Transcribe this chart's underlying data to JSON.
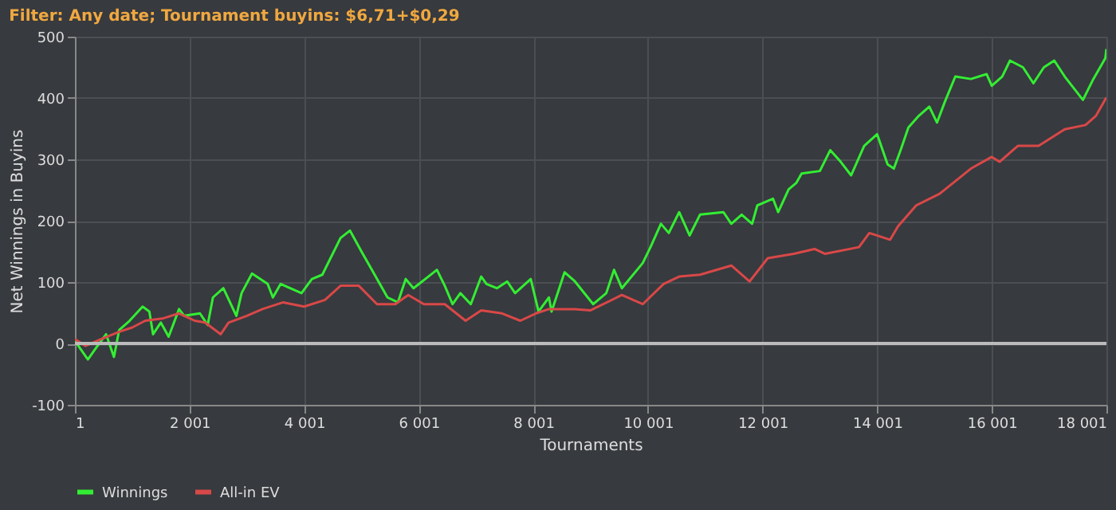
{
  "chart_data": {
    "type": "line",
    "title": "Filter: Any date; Tournament buyins: $6,71+$0,29",
    "xlabel": "Tournaments",
    "ylabel": "Net Winnings in Buyins",
    "xlim": [
      1,
      18001
    ],
    "xticks": [
      1,
      {
        "value": 2001,
        "label": "2 001"
      },
      {
        "value": 4001,
        "label": "4 001"
      },
      {
        "value": 6001,
        "label": "6 001"
      },
      {
        "value": 8001,
        "label": "8 001"
      },
      {
        "value": 10001,
        "label": "10 001"
      },
      {
        "value": 12001,
        "label": "12 001"
      },
      {
        "value": 14001,
        "label": "14 001"
      },
      {
        "value": 16001,
        "label": "16 001"
      },
      {
        "value": 18001,
        "label": "18 001"
      }
    ],
    "ylim": [
      -100,
      500
    ],
    "yticks": [
      -100,
      0,
      100,
      200,
      300,
      400,
      500
    ],
    "grid": true,
    "legend": "bottom",
    "marker": "none",
    "line_style": "solid",
    "ref_lines": [
      {
        "axis": "y",
        "value": 0,
        "color": "#bbbbbb"
      }
    ],
    "series": [
      {
        "name": "Winnings",
        "color": "#33ee33",
        "x": [
          1,
          227,
          364,
          545,
          682,
          773,
          955,
          1182,
          1300,
          1364,
          1500,
          1636,
          1818,
          1909,
          2182,
          2318,
          2409,
          2591,
          2818,
          2909,
          3091,
          3364,
          3455,
          3591,
          3955,
          4136,
          4318,
          4636,
          4800,
          5000,
          5182,
          5455,
          5636,
          5773,
          5909,
          6318,
          6455,
          6591,
          6727,
          6909,
          7091,
          7182,
          7364,
          7545,
          7682,
          7955,
          8091,
          8273,
          8318,
          8545,
          8727,
          9045,
          9273,
          9409,
          9545,
          9909,
          10045,
          10227,
          10364,
          10545,
          10727,
          10909,
          11318,
          11455,
          11636,
          11818,
          11909,
          12182,
          12273,
          12455,
          12591,
          12682,
          13000,
          13182,
          13364,
          13545,
          13773,
          14000,
          14182,
          14291,
          14409,
          14545,
          14727,
          14909,
          15045,
          15182,
          15364,
          15636,
          15909,
          16000,
          16182,
          16318,
          16545,
          16727,
          16909,
          17091,
          17273,
          17591,
          17773,
          17982,
          18001
        ],
        "values": [
          4,
          -26,
          -8,
          15,
          -22,
          22,
          37,
          60,
          52,
          15,
          34,
          11,
          56,
          45,
          49,
          30,
          75,
          90,
          45,
          82,
          114,
          97,
          75,
          97,
          82,
          105,
          112,
          172,
          184,
          150,
          120,
          75,
          67,
          105,
          90,
          120,
          94,
          64,
          82,
          64,
          109,
          97,
          90,
          101,
          82,
          105,
          52,
          75,
          52,
          116,
          101,
          64,
          82,
          120,
          90,
          131,
          157,
          195,
          180,
          214,
          176,
          210,
          214,
          195,
          210,
          195,
          225,
          236,
          214,
          251,
          262,
          277,
          281,
          315,
          296,
          274,
          322,
          341,
          292,
          285,
          315,
          352,
          371,
          386,
          360,
          394,
          435,
          431,
          439,
          420,
          435,
          461,
          450,
          424,
          450,
          461,
          435,
          397,
          431,
          465,
          480
        ]
      },
      {
        "name": "All-in EV",
        "color": "#d94848",
        "x": [
          1,
          182,
          455,
          773,
          1000,
          1227,
          1545,
          1818,
          2091,
          2273,
          2545,
          2682,
          3000,
          3273,
          3636,
          4000,
          4364,
          4636,
          4955,
          5273,
          5591,
          5818,
          6091,
          6455,
          6818,
          7091,
          7455,
          7773,
          8045,
          8273,
          8727,
          8999,
          9545,
          9909,
          10273,
          10545,
          10909,
          11455,
          11773,
          12091,
          12545,
          12909,
          13091,
          13682,
          13864,
          14227,
          14364,
          14682,
          15091,
          15636,
          16000,
          16136,
          16455,
          16818,
          17273,
          17636,
          17818,
          18001
        ],
        "values": [
          7,
          -4,
          7,
          19,
          26,
          37,
          41,
          49,
          37,
          34,
          15,
          34,
          45,
          56,
          67,
          60,
          71,
          94,
          94,
          64,
          64,
          79,
          64,
          64,
          37,
          54,
          49,
          37,
          49,
          56,
          56,
          54,
          79,
          64,
          97,
          109,
          112,
          127,
          101,
          139,
          146,
          154,
          146,
          157,
          180,
          169,
          191,
          225,
          244,
          285,
          304,
          296,
          322,
          322,
          349,
          356,
          371,
          401
        ]
      }
    ]
  }
}
